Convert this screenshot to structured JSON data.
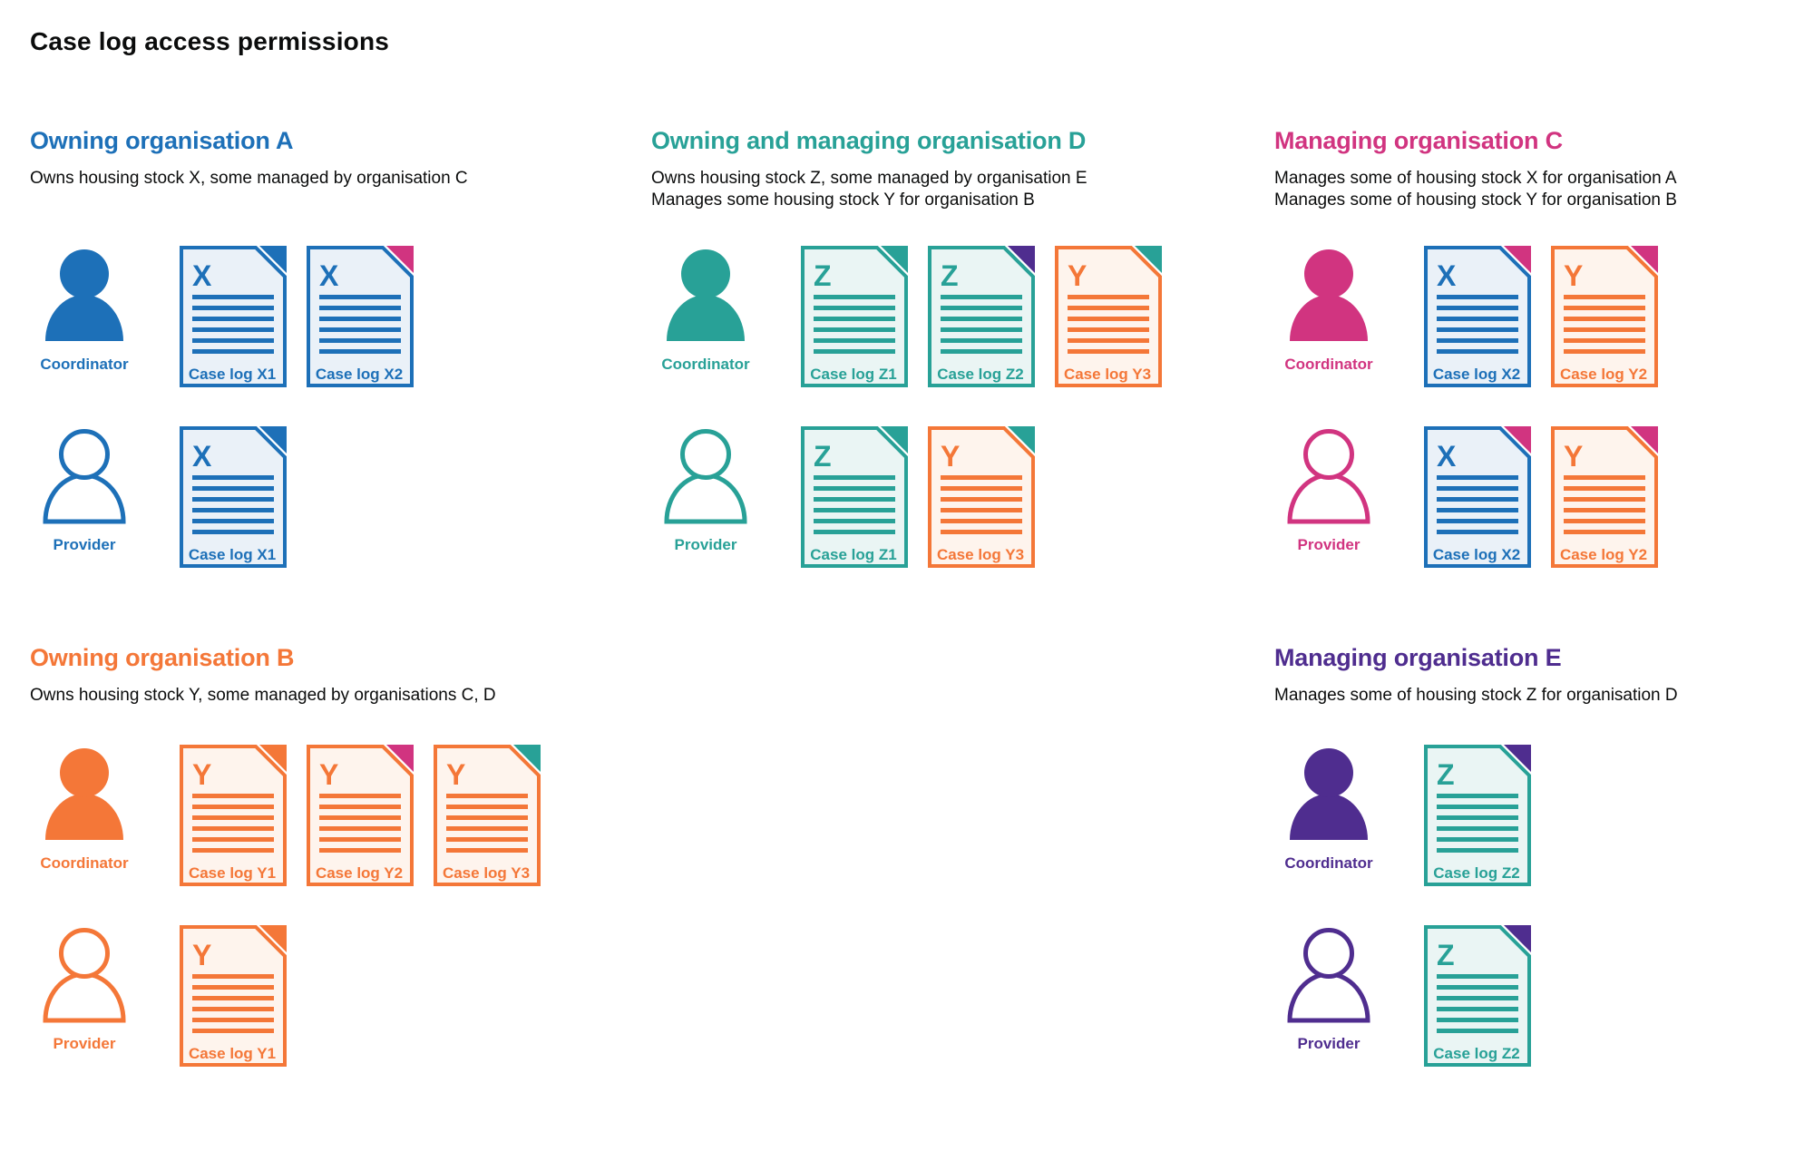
{
  "page_title": "Case log access permissions",
  "colors": {
    "blue": "#1d70b8",
    "teal": "#28a197",
    "pink": "#d13480",
    "orange": "#f47738",
    "purple": "#4f2d8f",
    "text": "#0b0c0c",
    "doc_bg_blue": "#eaf1f8",
    "doc_bg_teal": "#eaf5f4",
    "doc_bg_orange": "#fef4ed",
    "page_bg": "#ffffff"
  },
  "organisations": [
    {
      "name": "Owning organisation A",
      "color": "blue",
      "column": 0,
      "row": 0,
      "description": [
        "Owns housing stock X, some managed by organisation C"
      ],
      "roles": [
        {
          "label": "Coordinator",
          "person_style": "filled",
          "docs": [
            {
              "letter": "X",
              "label": "Case log X1",
              "doc_color": "blue",
              "corner_color": "blue"
            },
            {
              "letter": "X",
              "label": "Case log X2",
              "doc_color": "blue",
              "corner_color": "pink"
            }
          ]
        },
        {
          "label": "Provider",
          "person_style": "outline",
          "docs": [
            {
              "letter": "X",
              "label": "Case log X1",
              "doc_color": "blue",
              "corner_color": "blue"
            }
          ]
        }
      ]
    },
    {
      "name": "Owning and managing organisation D",
      "color": "teal",
      "column": 1,
      "row": 0,
      "description": [
        "Owns housing stock Z, some managed by organisation E",
        "Manages some housing stock Y for organisation B"
      ],
      "roles": [
        {
          "label": "Coordinator",
          "person_style": "filled",
          "docs": [
            {
              "letter": "Z",
              "label": "Case log Z1",
              "doc_color": "teal",
              "corner_color": "teal"
            },
            {
              "letter": "Z",
              "label": "Case log Z2",
              "doc_color": "teal",
              "corner_color": "purple"
            },
            {
              "letter": "Y",
              "label": "Case log Y3",
              "doc_color": "orange",
              "corner_color": "teal"
            }
          ]
        },
        {
          "label": "Provider",
          "person_style": "outline",
          "docs": [
            {
              "letter": "Z",
              "label": "Case log Z1",
              "doc_color": "teal",
              "corner_color": "teal"
            },
            {
              "letter": "Y",
              "label": "Case log Y3",
              "doc_color": "orange",
              "corner_color": "teal"
            }
          ]
        }
      ]
    },
    {
      "name": "Managing organisation C",
      "color": "pink",
      "column": 2,
      "row": 0,
      "description": [
        "Manages some of housing stock X for organisation A",
        "Manages some of housing stock Y for organisation B"
      ],
      "roles": [
        {
          "label": "Coordinator",
          "person_style": "filled",
          "docs": [
            {
              "letter": "X",
              "label": "Case log X2",
              "doc_color": "blue",
              "corner_color": "pink"
            },
            {
              "letter": "Y",
              "label": "Case log Y2",
              "doc_color": "orange",
              "corner_color": "pink"
            }
          ]
        },
        {
          "label": "Provider",
          "person_style": "outline",
          "docs": [
            {
              "letter": "X",
              "label": "Case log X2",
              "doc_color": "blue",
              "corner_color": "pink"
            },
            {
              "letter": "Y",
              "label": "Case log Y2",
              "doc_color": "orange",
              "corner_color": "pink"
            }
          ]
        }
      ]
    },
    {
      "name": "Owning organisation B",
      "color": "orange",
      "column": 0,
      "row": 1,
      "description": [
        "Owns housing stock Y, some managed by organisations C, D"
      ],
      "roles": [
        {
          "label": "Coordinator",
          "person_style": "filled",
          "docs": [
            {
              "letter": "Y",
              "label": "Case log Y1",
              "doc_color": "orange",
              "corner_color": "orange"
            },
            {
              "letter": "Y",
              "label": "Case log Y2",
              "doc_color": "orange",
              "corner_color": "pink"
            },
            {
              "letter": "Y",
              "label": "Case log Y3",
              "doc_color": "orange",
              "corner_color": "teal"
            }
          ]
        },
        {
          "label": "Provider",
          "person_style": "outline",
          "docs": [
            {
              "letter": "Y",
              "label": "Case log Y1",
              "doc_color": "orange",
              "corner_color": "orange"
            }
          ]
        }
      ]
    },
    {
      "name": "Managing organisation E",
      "color": "purple",
      "column": 2,
      "row": 1,
      "description": [
        "Manages some of housing stock Z for organisation D"
      ],
      "roles": [
        {
          "label": "Coordinator",
          "person_style": "filled",
          "docs": [
            {
              "letter": "Z",
              "label": "Case log Z2",
              "doc_color": "teal",
              "corner_color": "purple"
            }
          ]
        },
        {
          "label": "Provider",
          "person_style": "outline",
          "docs": [
            {
              "letter": "Z",
              "label": "Case log Z2",
              "doc_color": "teal",
              "corner_color": "purple"
            }
          ]
        }
      ]
    }
  ]
}
